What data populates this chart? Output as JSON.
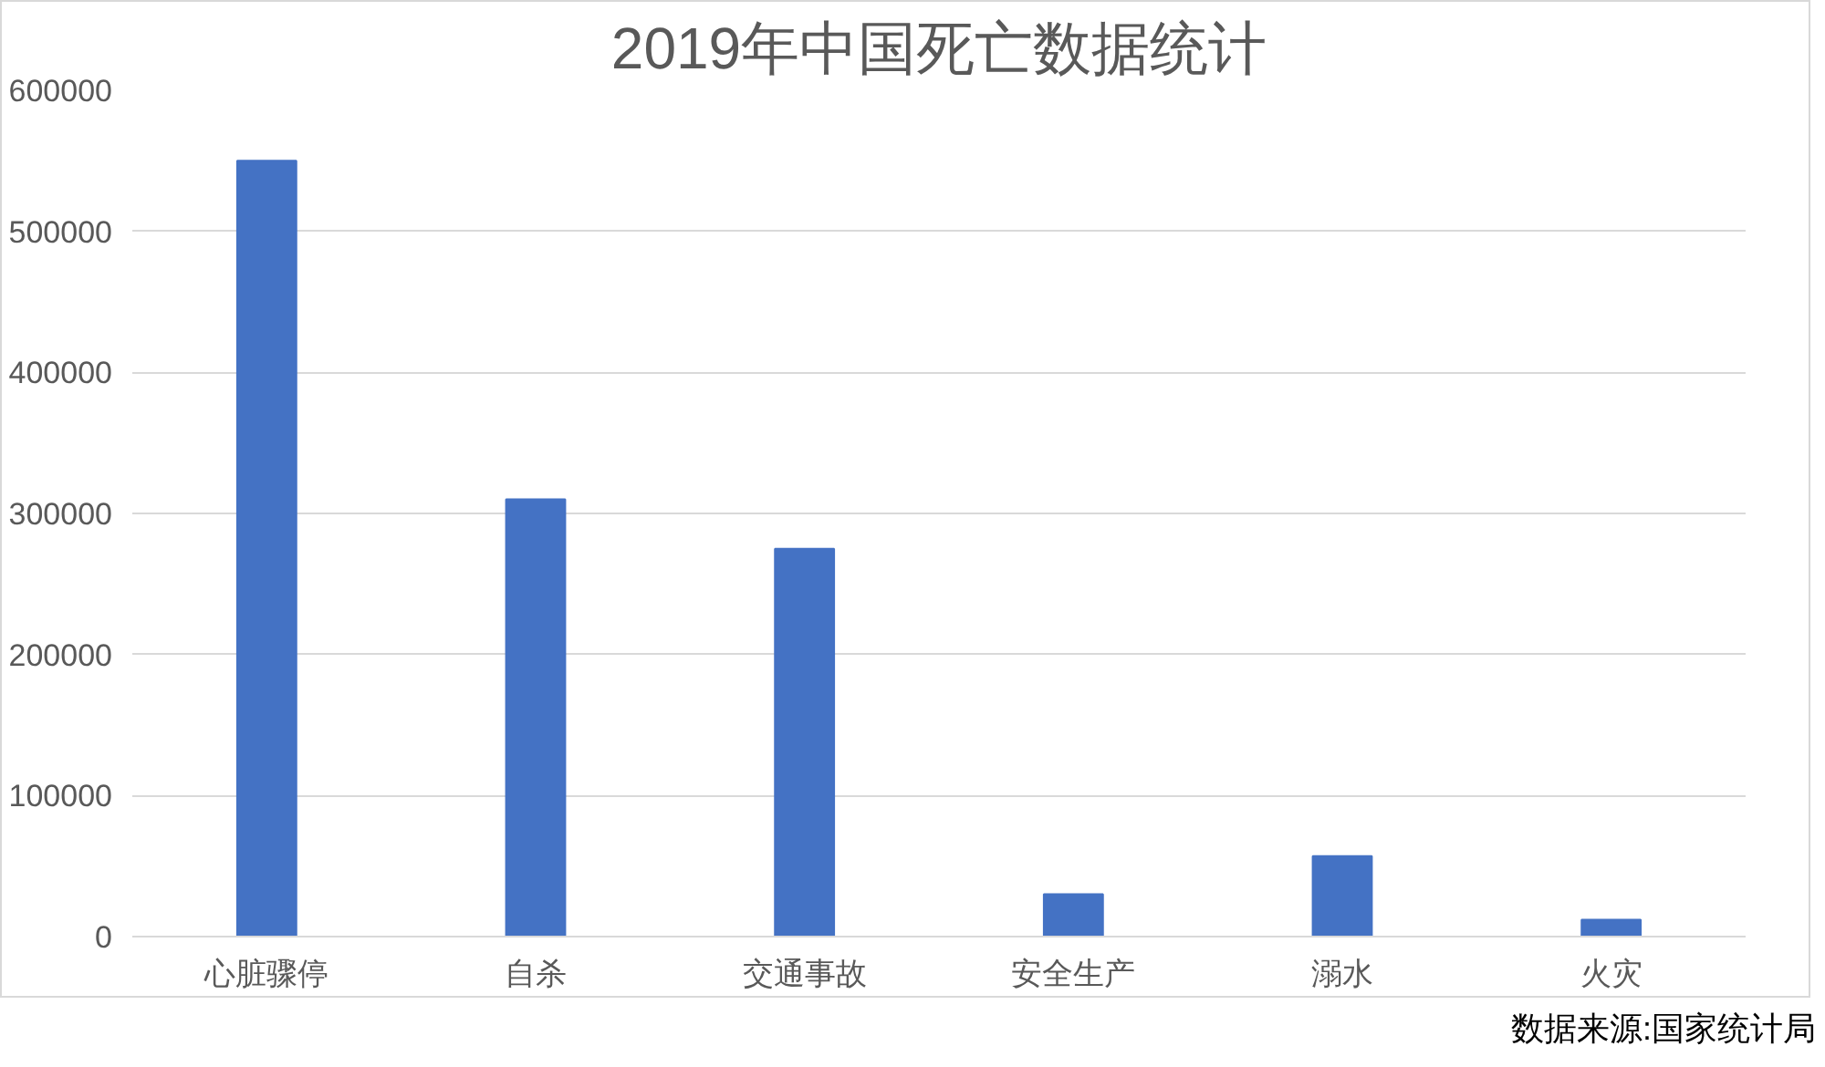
{
  "chart_data": {
    "type": "bar",
    "title": "2019年中国死亡数据统计",
    "categories": [
      "心脏骤停",
      "自杀",
      "交通事故",
      "安全生产",
      "溺水",
      "火灾"
    ],
    "values": [
      550000,
      310000,
      275000,
      30000,
      57000,
      12000
    ],
    "color": "#4472c4",
    "ylim": [
      0,
      600000
    ],
    "yticks": [
      0,
      100000,
      200000,
      300000,
      400000,
      500000,
      600000
    ],
    "grid": "y",
    "annotations": [
      "数据来源:国家统计局"
    ]
  }
}
